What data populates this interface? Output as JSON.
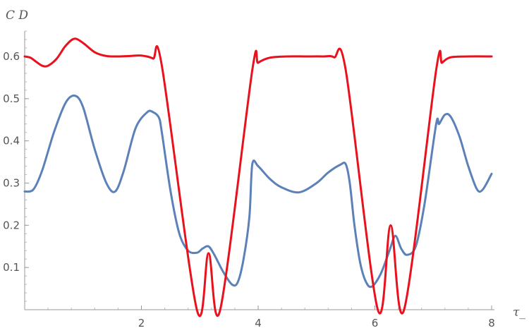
{
  "chart_data": {
    "type": "line",
    "title": "",
    "xlabel": "τ_",
    "ylabel": "C D",
    "xlim": [
      0,
      8.05
    ],
    "ylim": [
      0,
      0.66
    ],
    "x_ticks": [
      2,
      4,
      6,
      8
    ],
    "x_tick_labels": [
      "2",
      "4",
      "6",
      "8"
    ],
    "y_ticks": [
      0.1,
      0.2,
      0.3,
      0.4,
      0.5,
      0.6
    ],
    "y_tick_labels": [
      "0.1",
      "0.2",
      "0.3",
      "0.4",
      "0.5",
      "0.6"
    ],
    "x_minor_step": 0.4,
    "y_minor_step": 0.02,
    "grid": false,
    "series": [
      {
        "color": "#5b81b8",
        "x": [
          0,
          0.15,
          0.3,
          0.5,
          0.7,
          0.86,
          1.0,
          1.2,
          1.4,
          1.55,
          1.7,
          1.9,
          2.1,
          2.2,
          2.3,
          2.35,
          2.5,
          2.65,
          2.8,
          2.95,
          3.05,
          3.15,
          3.25,
          3.4,
          3.55,
          3.65,
          3.75,
          3.85,
          3.9,
          4.0,
          4.2,
          4.4,
          4.7,
          5.0,
          5.2,
          5.4,
          5.5,
          5.57,
          5.65,
          5.75,
          5.85,
          5.95,
          6.1,
          6.25,
          6.35,
          6.45,
          6.55,
          6.7,
          6.85,
          7.05,
          7.1,
          7.2,
          7.3,
          7.45,
          7.6,
          7.75,
          7.85,
          8.0
        ],
        "y": [
          0.28,
          0.285,
          0.33,
          0.42,
          0.49,
          0.507,
          0.48,
          0.38,
          0.3,
          0.28,
          0.33,
          0.43,
          0.468,
          0.468,
          0.455,
          0.42,
          0.28,
          0.18,
          0.14,
          0.135,
          0.145,
          0.15,
          0.13,
          0.09,
          0.06,
          0.065,
          0.12,
          0.22,
          0.345,
          0.34,
          0.31,
          0.29,
          0.278,
          0.3,
          0.325,
          0.343,
          0.345,
          0.3,
          0.2,
          0.11,
          0.065,
          0.055,
          0.085,
          0.14,
          0.175,
          0.145,
          0.13,
          0.15,
          0.25,
          0.44,
          0.44,
          0.462,
          0.457,
          0.41,
          0.34,
          0.285,
          0.285,
          0.322
        ]
      },
      {
        "color": "#e8111c",
        "x": [
          0,
          0.1,
          0.2,
          0.3,
          0.4,
          0.55,
          0.7,
          0.85,
          1.0,
          1.2,
          1.4,
          1.6,
          1.8,
          2.0,
          2.2,
          2.35,
          2.95,
          3.15,
          3.35,
          3.9,
          4.0,
          4.2,
          4.5,
          4.8,
          5.1,
          5.3,
          5.5,
          6.05,
          6.27,
          6.5,
          7.05,
          7.15,
          7.3,
          7.6,
          8.0
        ],
        "y": [
          0.6,
          0.597,
          0.587,
          0.578,
          0.578,
          0.595,
          0.625,
          0.642,
          0.632,
          0.61,
          0.601,
          0.6,
          0.601,
          0.602,
          0.595,
          0.578,
          0.0,
          0.134,
          0.0,
          0.568,
          0.585,
          0.597,
          0.6,
          0.6,
          0.6,
          0.598,
          0.568,
          0.0,
          0.2,
          0.0,
          0.568,
          0.585,
          0.598,
          0.6,
          0.6
        ]
      }
    ]
  }
}
